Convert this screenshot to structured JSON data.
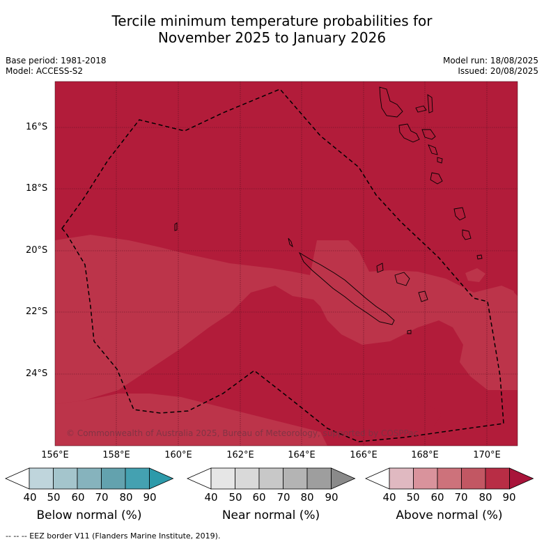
{
  "title_line1": "Tercile minimum temperature probabilities for",
  "title_line2": "November 2025 to January 2026",
  "base_period": "Base period: 1981-2018",
  "model": "Model: ACCESS-S2",
  "model_run": "Model run: 18/08/2025",
  "issued": "Issued: 20/08/2025",
  "lat_labels": [
    "16°S",
    "18°S",
    "20°S",
    "22°S",
    "24°S"
  ],
  "lon_labels": [
    "156°E",
    "158°E",
    "160°E",
    "162°E",
    "164°E",
    "166°E",
    "168°E",
    "170°E"
  ],
  "copyright": "© Commonwealth of Australia 2025, Bureau of Meteorology, supported by COSPPac",
  "legend": {
    "ticks": [
      "40",
      "50",
      "60",
      "70",
      "80",
      "90"
    ],
    "below_title": "Below normal (%)",
    "near_title": "Near normal (%)",
    "above_title": "Above normal (%)",
    "below_colors": [
      "#ffffff",
      "#bfd5dc",
      "#a4c5cc",
      "#86b3bd",
      "#63a2ae",
      "#44a1b1",
      "#2d9aaa"
    ],
    "near_colors": [
      "#ffffff",
      "#e6e6e6",
      "#d9d9d9",
      "#c8c8c8",
      "#b4b4b4",
      "#9e9e9e",
      "#8a8a8a"
    ],
    "above_colors": [
      "#ffffff",
      "#e0b9c1",
      "#d9939c",
      "#cd727b",
      "#c25763",
      "#b82d45",
      "#a8143a"
    ]
  },
  "map_colors": {
    "above_80": "#b21c3a",
    "above_70": "#bc344a"
  },
  "footer": "--  --  -- EEZ border V11 (Flanders Marine Institute, 2019)."
}
